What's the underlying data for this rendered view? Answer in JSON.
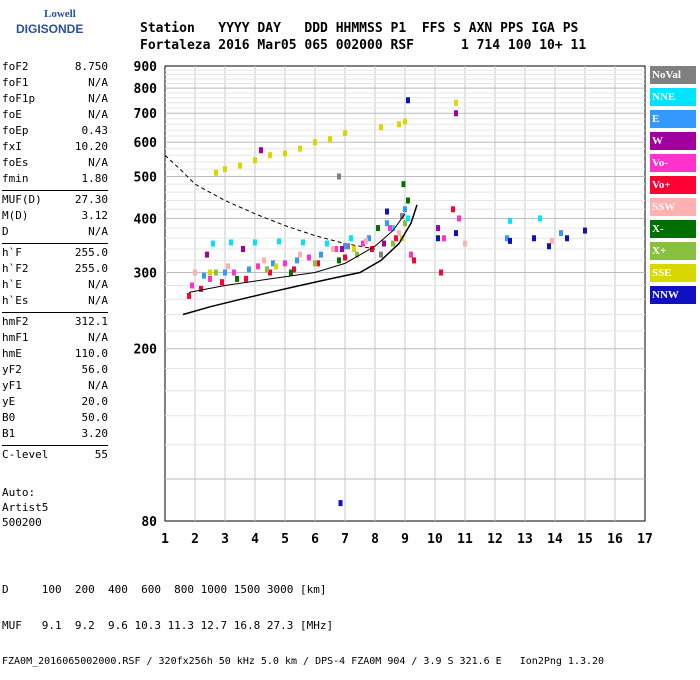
{
  "logo": {
    "line1": "Lowell",
    "line2": "DIGISONDE"
  },
  "header": {
    "row1": [
      "Station",
      "YYYY DAY",
      "DDD",
      "HHMMSS",
      "P1",
      "FFS",
      "S",
      "AXN",
      "PPS",
      "IGA",
      "PS"
    ],
    "row2": [
      "Fortaleza",
      "2016 Mar05",
      "065",
      "002000",
      "RSF",
      "1",
      "714",
      "100",
      "10+",
      "11"
    ]
  },
  "params": {
    "group1": [
      {
        "label": "foF2",
        "value": "8.750"
      },
      {
        "label": "foF1",
        "value": "N/A"
      },
      {
        "label": "foF1p",
        "value": "N/A"
      },
      {
        "label": "foE",
        "value": "N/A"
      },
      {
        "label": "foEp",
        "value": "0.43"
      },
      {
        "label": "fxI",
        "value": "10.20"
      },
      {
        "label": "foEs",
        "value": "N/A"
      },
      {
        "label": "fmin",
        "value": "1.80"
      }
    ],
    "group2": [
      {
        "label": "MUF(D)",
        "value": "27.30"
      },
      {
        "label": "M(D)",
        "value": "3.12"
      },
      {
        "label": "D",
        "value": "N/A"
      }
    ],
    "group3": [
      {
        "label": "h`F",
        "value": "255.0"
      },
      {
        "label": "h`F2",
        "value": "255.0"
      },
      {
        "label": "h`E",
        "value": "N/A"
      },
      {
        "label": "h`Es",
        "value": "N/A"
      }
    ],
    "group4": [
      {
        "label": "hmF2",
        "value": "312.1"
      },
      {
        "label": "hmF1",
        "value": "N/A"
      },
      {
        "label": "hmE",
        "value": "110.0"
      },
      {
        "label": "yF2",
        "value": "56.0"
      },
      {
        "label": "yF1",
        "value": "N/A"
      },
      {
        "label": "yE",
        "value": "20.0"
      },
      {
        "label": "B0",
        "value": "50.0"
      },
      {
        "label": "B1",
        "value": "3.20"
      }
    ],
    "group5": [
      {
        "label": "C-level",
        "value": "55"
      }
    ]
  },
  "auto": {
    "line1": "Auto:",
    "line2": "Artist5",
    "line3": "500200"
  },
  "footer": {
    "row1": "D     100  200  400  600  800 1000 1500 3000 [km]",
    "row2": "MUF   9.1  9.2  9.6 10.3 11.3 12.7 16.8 27.3 [MHz]",
    "row3": "FZA0M_2016065002000.RSF / 320fx256h 50 kHz 5.0 km / DPS-4 FZA0M 904 / 3.9 S 321.6 E   Ion2Png 1.3.20"
  },
  "legend": [
    {
      "label": "NoVal",
      "color": "#808080"
    },
    {
      "label": "NNE",
      "color": "#00e5ff"
    },
    {
      "label": "E",
      "color": "#3399ff"
    },
    {
      "label": "W",
      "color": "#a000a0"
    },
    {
      "label": "Vo-",
      "color": "#ff33cc"
    },
    {
      "label": "Vo+",
      "color": "#ff0033"
    },
    {
      "label": "SSW",
      "color": "#ffb0b0"
    },
    {
      "label": "X-",
      "color": "#007000"
    },
    {
      "label": "X+",
      "color": "#88c040"
    },
    {
      "label": "SSE",
      "color": "#d8d800"
    },
    {
      "label": "NNW",
      "color": "#1010c0"
    }
  ],
  "chart_data": {
    "type": "scatter",
    "xlabel": "",
    "ylabel": "",
    "xlim": [
      1,
      17
    ],
    "ylim": [
      80,
      900
    ],
    "yscale": "log",
    "xticks": [
      "1",
      "2",
      "3",
      "4",
      "5",
      "6",
      "7",
      "8",
      "9",
      "10",
      "11",
      "12",
      "13",
      "14",
      "15",
      "16",
      "17"
    ],
    "yticks": [
      "80",
      "200",
      "300",
      "400",
      "500",
      "600",
      "700",
      "800",
      "900"
    ],
    "ytick_values": [
      80,
      200,
      300,
      400,
      500,
      600,
      700,
      800,
      900
    ],
    "grid": true,
    "series": [
      {
        "name": "NoVal",
        "color": "#808080",
        "points": [
          [
            6.8,
            500
          ],
          [
            7.1,
            345
          ],
          [
            8.2,
            330
          ],
          [
            8.9,
            405
          ]
        ]
      },
      {
        "name": "NNE",
        "color": "#00e5ff",
        "points": [
          [
            2.6,
            350
          ],
          [
            3.2,
            352
          ],
          [
            4.0,
            352
          ],
          [
            4.8,
            354
          ],
          [
            5.6,
            352
          ],
          [
            6.4,
            350
          ],
          [
            7.2,
            360
          ],
          [
            8.6,
            380
          ],
          [
            9.1,
            400
          ],
          [
            12.5,
            395
          ],
          [
            13.5,
            400
          ]
        ]
      },
      {
        "name": "E",
        "color": "#3399ff",
        "points": [
          [
            2.3,
            295
          ],
          [
            3.0,
            300
          ],
          [
            3.8,
            305
          ],
          [
            4.6,
            315
          ],
          [
            5.4,
            320
          ],
          [
            6.2,
            330
          ],
          [
            7.0,
            345
          ],
          [
            7.8,
            360
          ],
          [
            8.4,
            390
          ],
          [
            9.0,
            420
          ],
          [
            12.4,
            360
          ],
          [
            14.2,
            370
          ]
        ]
      },
      {
        "name": "W",
        "color": "#a000a0",
        "points": [
          [
            2.4,
            330
          ],
          [
            3.6,
            340
          ],
          [
            4.2,
            575
          ],
          [
            6.9,
            340
          ],
          [
            8.3,
            350
          ],
          [
            10.7,
            700
          ],
          [
            10.1,
            380
          ]
        ]
      },
      {
        "name": "Vo-",
        "color": "#ff33cc",
        "points": [
          [
            1.9,
            280
          ],
          [
            2.5,
            290
          ],
          [
            3.3,
            300
          ],
          [
            4.1,
            310
          ],
          [
            5.0,
            315
          ],
          [
            5.8,
            325
          ],
          [
            6.7,
            340
          ],
          [
            7.6,
            350
          ],
          [
            8.5,
            380
          ],
          [
            9.2,
            330
          ],
          [
            10.3,
            360
          ],
          [
            10.8,
            400
          ]
        ]
      },
      {
        "name": "Vo+",
        "color": "#ff0033",
        "points": [
          [
            1.8,
            265
          ],
          [
            2.2,
            275
          ],
          [
            2.9,
            285
          ],
          [
            3.7,
            290
          ],
          [
            4.5,
            300
          ],
          [
            5.3,
            305
          ],
          [
            6.1,
            315
          ],
          [
            7.0,
            325
          ],
          [
            7.9,
            340
          ],
          [
            8.7,
            360
          ],
          [
            9.3,
            320
          ],
          [
            10.2,
            300
          ],
          [
            10.6,
            420
          ]
        ]
      },
      {
        "name": "SSW",
        "color": "#ffb0b0",
        "points": [
          [
            2.0,
            300
          ],
          [
            3.1,
            310
          ],
          [
            4.3,
            320
          ],
          [
            5.5,
            330
          ],
          [
            6.6,
            340
          ],
          [
            7.7,
            355
          ],
          [
            8.8,
            370
          ],
          [
            11.0,
            350
          ],
          [
            13.9,
            355
          ]
        ]
      },
      {
        "name": "X-",
        "color": "#007000",
        "points": [
          [
            3.4,
            290
          ],
          [
            5.2,
            300
          ],
          [
            6.8,
            320
          ],
          [
            8.1,
            380
          ],
          [
            8.95,
            480
          ],
          [
            9.1,
            440
          ]
        ]
      },
      {
        "name": "X+",
        "color": "#88c040",
        "points": [
          [
            2.7,
            300
          ],
          [
            4.4,
            305
          ],
          [
            6.0,
            315
          ],
          [
            7.4,
            330
          ],
          [
            8.6,
            350
          ],
          [
            9.0,
            390
          ]
        ]
      },
      {
        "name": "SSE",
        "color": "#d8d800",
        "points": [
          [
            2.7,
            510
          ],
          [
            3.0,
            520
          ],
          [
            3.5,
            530
          ],
          [
            4.0,
            545
          ],
          [
            4.5,
            560
          ],
          [
            5.0,
            565
          ],
          [
            5.5,
            580
          ],
          [
            6.0,
            600
          ],
          [
            6.5,
            610
          ],
          [
            7.0,
            630
          ],
          [
            8.2,
            650
          ],
          [
            8.8,
            660
          ],
          [
            9.0,
            670
          ],
          [
            10.7,
            740
          ],
          [
            2.5,
            300
          ],
          [
            4.7,
            310
          ],
          [
            7.3,
            340
          ],
          [
            8.9,
            360
          ]
        ]
      },
      {
        "name": "NNW",
        "color": "#1010c0",
        "points": [
          [
            6.85,
            88
          ],
          [
            8.4,
            415
          ],
          [
            9.1,
            750
          ],
          [
            10.1,
            360
          ],
          [
            10.7,
            370
          ],
          [
            12.5,
            355
          ],
          [
            13.3,
            360
          ],
          [
            13.8,
            345
          ],
          [
            14.4,
            360
          ],
          [
            15.0,
            375
          ]
        ]
      }
    ],
    "virtual_height_trace": [
      [
        1.6,
        240
      ],
      [
        2.5,
        250
      ],
      [
        3.5,
        260
      ],
      [
        4.5,
        270
      ],
      [
        5.5,
        280
      ],
      [
        6.5,
        290
      ],
      [
        7.5,
        300
      ],
      [
        8.2,
        320
      ],
      [
        8.8,
        350
      ],
      [
        9.2,
        390
      ],
      [
        9.4,
        430
      ]
    ],
    "f2_trace": [
      [
        1.8,
        270
      ],
      [
        3.0,
        280
      ],
      [
        4.5,
        290
      ],
      [
        6.0,
        300
      ],
      [
        7.0,
        315
      ],
      [
        8.0,
        345
      ],
      [
        8.6,
        375
      ],
      [
        9.0,
        410
      ]
    ],
    "dashed_curve": [
      [
        1.0,
        560
      ],
      [
        1.5,
        520
      ],
      [
        2.0,
        480
      ],
      [
        3.0,
        440
      ],
      [
        4.0,
        410
      ],
      [
        5.0,
        385
      ],
      [
        6.0,
        365
      ],
      [
        7.0,
        350
      ],
      [
        8.0,
        340
      ]
    ]
  }
}
